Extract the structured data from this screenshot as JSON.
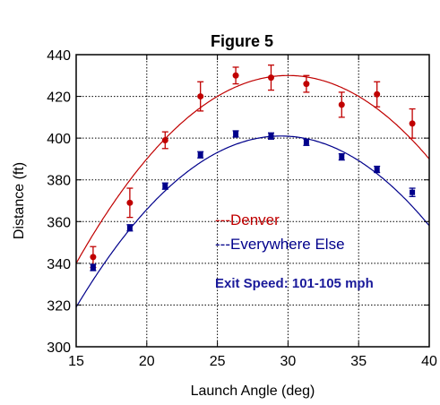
{
  "chart_data": {
    "type": "scatter",
    "title": "Figure 5",
    "xlabel": "Launch Angle (deg)",
    "ylabel": "Distance (ft)",
    "xlim": [
      15,
      40
    ],
    "ylim": [
      300,
      440
    ],
    "xticks": [
      15,
      20,
      25,
      30,
      35,
      40
    ],
    "yticks": [
      300,
      320,
      340,
      360,
      380,
      400,
      420,
      440
    ],
    "grid": true,
    "series": [
      {
        "name": "---Denver",
        "color": "#c00000",
        "x": [
          16.2,
          18.8,
          21.3,
          23.8,
          26.3,
          28.8,
          31.3,
          33.8,
          36.3,
          38.8
        ],
        "y": [
          343,
          369,
          399,
          420,
          430,
          429,
          426,
          416,
          421,
          407
        ],
        "err": [
          5,
          7,
          4,
          7,
          4,
          6,
          4,
          6,
          6,
          7
        ],
        "fit": {
          "peak_x": 30,
          "peak_y": 430,
          "curvature": 0.4
        }
      },
      {
        "name": "---Everywhere Else",
        "color": "#00008b",
        "x": [
          16.2,
          18.8,
          21.3,
          23.8,
          26.3,
          28.8,
          31.3,
          33.8,
          36.3,
          38.8
        ],
        "y": [
          338,
          357,
          377,
          392,
          402,
          401,
          398,
          391,
          385,
          374
        ],
        "err": [
          1.5,
          1.5,
          1.5,
          1.5,
          1.5,
          1.5,
          1.5,
          1.5,
          1.5,
          2
        ],
        "fit": {
          "peak_x": 29.5,
          "peak_y": 401,
          "curvature": 0.39
        }
      }
    ],
    "annotation": "Exit Speed:  101-105 mph",
    "annotation_color": "#1a1a9a"
  }
}
